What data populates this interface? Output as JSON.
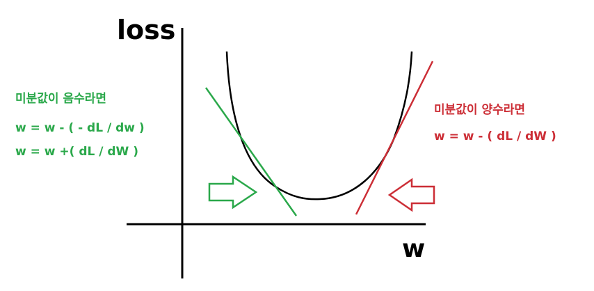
{
  "labels": {
    "y_axis": "loss",
    "x_axis": "w"
  },
  "negative_gradient": {
    "title": "미분값이 음수라면",
    "equation_1": "w = w - ( - dL / dw )",
    "equation_2": "w = w +( dL / dW )",
    "color": "#2aa84a"
  },
  "positive_gradient": {
    "title": "미분값이 양수라면",
    "equation_1": "w = w - ( dL / dW )",
    "color": "#cc2e36"
  },
  "colors": {
    "axes": "#000000",
    "curve": "#000000"
  }
}
